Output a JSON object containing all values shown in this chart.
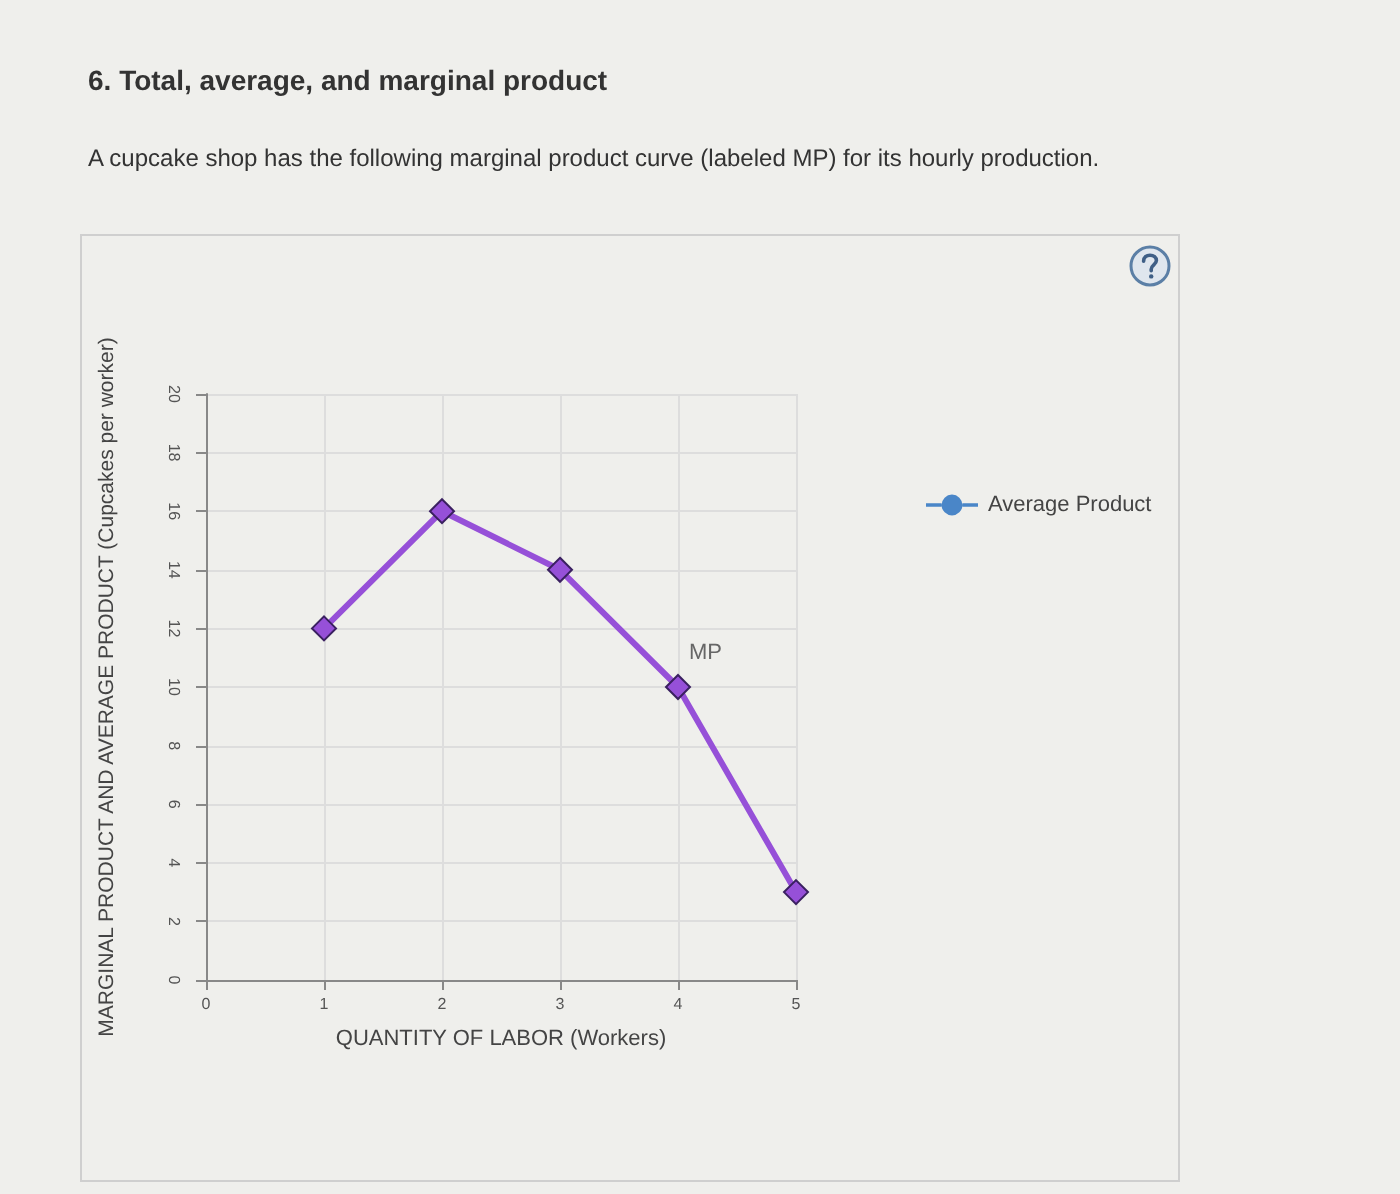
{
  "chart_data": {
    "type": "line",
    "title": "6. Total, average, and marginal product",
    "subtitle": "A cupcake shop has the following marginal product curve (labeled MP) for its hourly production.",
    "xlabel": "QUANTITY OF LABOR (Workers)",
    "ylabel": "MARGINAL PRODUCT AND AVERAGE PRODUCT (Cupcakes per worker)",
    "x": [
      1,
      2,
      3,
      4,
      5
    ],
    "series": [
      {
        "name": "MP",
        "color": "#9650d8",
        "values": [
          12,
          16,
          14,
          10,
          3
        ]
      },
      {
        "name": "Average Product",
        "color": "#4a86c8",
        "values": [
          null,
          null,
          null,
          null,
          null
        ],
        "marker": "circle"
      }
    ],
    "xlim": [
      0,
      5
    ],
    "xticks": [
      0,
      1,
      2,
      3,
      4,
      5
    ],
    "ylim": [
      0,
      20
    ],
    "yticks": [
      0,
      2,
      4,
      6,
      8,
      10,
      12,
      14,
      16,
      18,
      20
    ],
    "grid": true,
    "legend": "right",
    "marker": "diamond",
    "line_style": "solid"
  }
}
